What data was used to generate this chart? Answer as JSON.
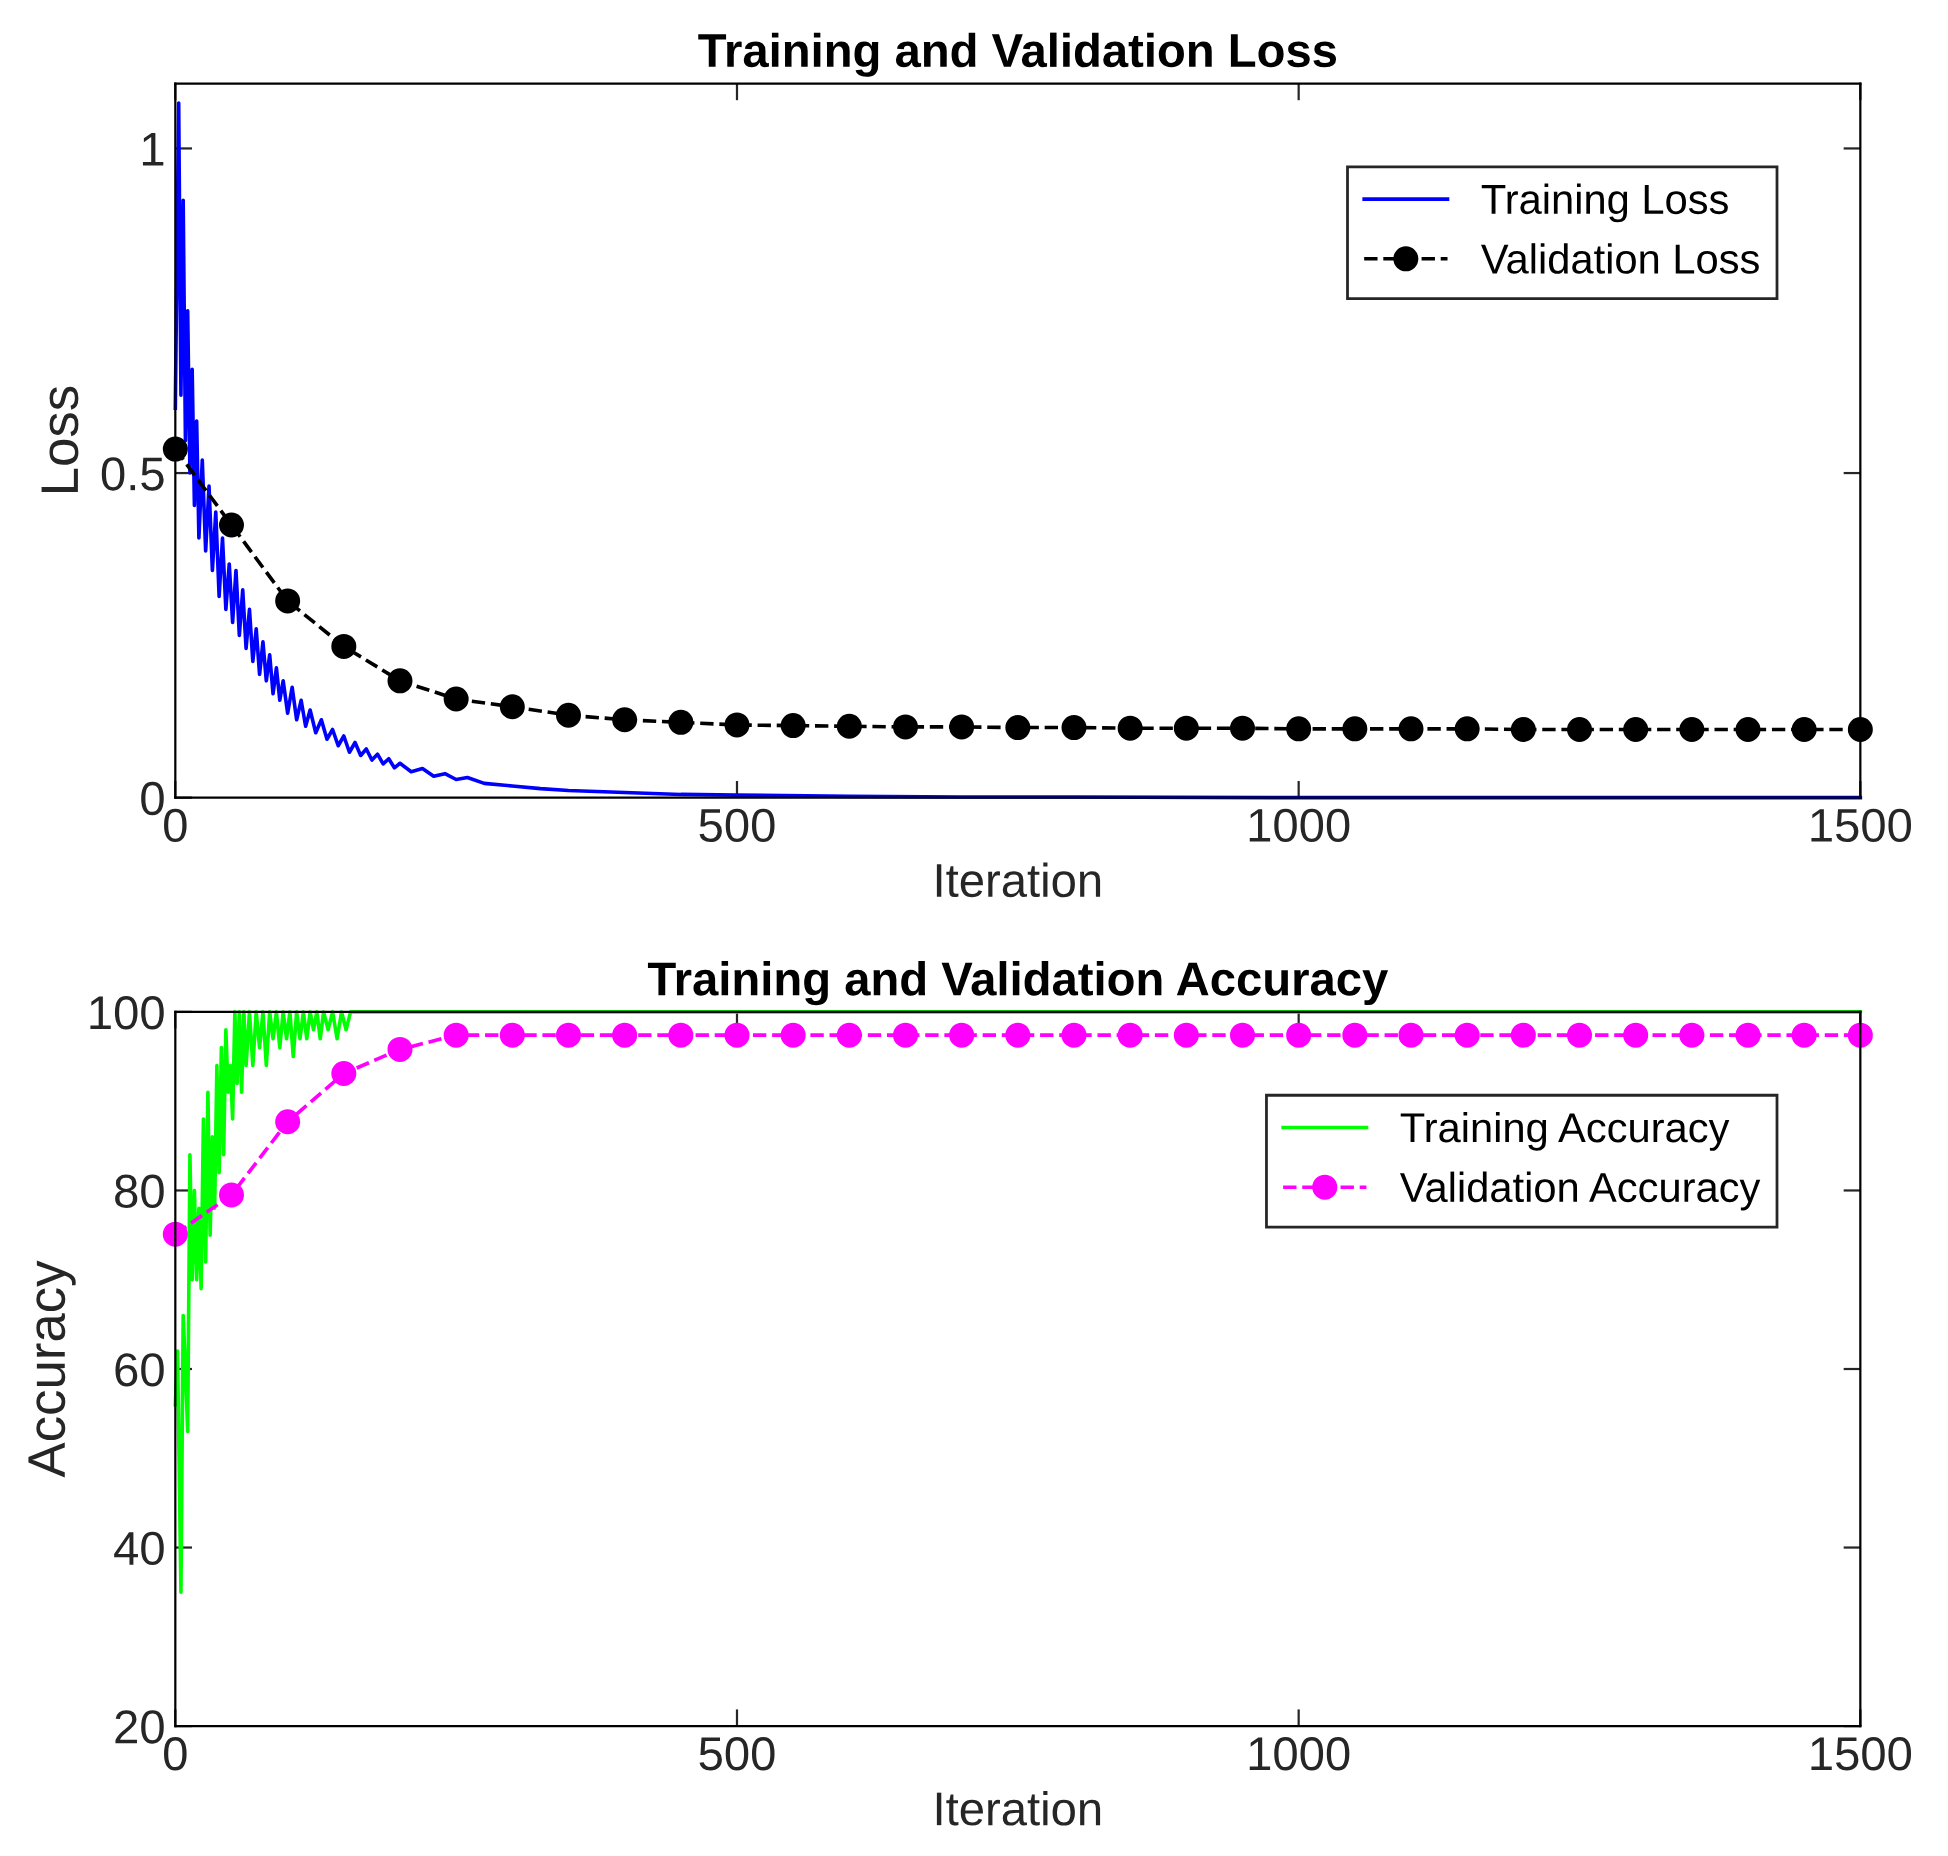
{
  "chart_data": [
    {
      "type": "line",
      "title": "Training and Validation Loss",
      "xlabel": "Iteration",
      "ylabel": "Loss",
      "xlim": [
        0,
        1500
      ],
      "xticks": [
        0,
        500,
        1000,
        1500
      ],
      "ylim": [
        0,
        1.1
      ],
      "yticks": [
        0,
        0.5,
        1
      ],
      "grid": false,
      "legend": "top right",
      "series": [
        {
          "name": "Training Loss",
          "color": "#0000ff",
          "line_style": "solid",
          "marker": "none",
          "x": [
            0,
            3,
            5,
            7,
            9,
            11,
            13,
            15,
            17,
            19,
            21,
            24,
            27,
            30,
            33,
            36,
            39,
            42,
            45,
            48,
            51,
            54,
            57,
            60,
            63,
            66,
            69,
            72,
            75,
            78,
            81,
            84,
            87,
            90,
            93,
            96,
            100,
            104,
            108,
            112,
            116,
            120,
            125,
            130,
            135,
            140,
            145,
            150,
            155,
            160,
            165,
            170,
            175,
            180,
            185,
            190,
            195,
            200,
            210,
            220,
            230,
            240,
            250,
            260,
            275,
            300,
            325,
            350,
            400,
            450,
            500,
            600,
            700,
            800,
            1000,
            1500
          ],
          "values": [
            0.6,
            1.07,
            0.62,
            0.92,
            0.55,
            0.75,
            0.5,
            0.66,
            0.45,
            0.58,
            0.4,
            0.52,
            0.38,
            0.48,
            0.35,
            0.44,
            0.31,
            0.4,
            0.29,
            0.36,
            0.27,
            0.35,
            0.25,
            0.32,
            0.23,
            0.29,
            0.21,
            0.26,
            0.19,
            0.24,
            0.18,
            0.22,
            0.16,
            0.2,
            0.15,
            0.18,
            0.13,
            0.17,
            0.12,
            0.15,
            0.11,
            0.135,
            0.1,
            0.12,
            0.09,
            0.105,
            0.08,
            0.095,
            0.07,
            0.085,
            0.065,
            0.075,
            0.058,
            0.067,
            0.052,
            0.06,
            0.046,
            0.053,
            0.04,
            0.045,
            0.033,
            0.037,
            0.028,
            0.031,
            0.022,
            0.018,
            0.014,
            0.011,
            0.008,
            0.005,
            0.004,
            0.002,
            0.001,
            0.001,
            0,
            0
          ]
        },
        {
          "name": "Validation Loss",
          "color": "#000000",
          "line_style": "dashed",
          "marker": "circle",
          "x": [
            0,
            50,
            100,
            150,
            200,
            250,
            300,
            350,
            400,
            450,
            500,
            550,
            600,
            650,
            700,
            750,
            800,
            850,
            900,
            950,
            1000,
            1050,
            1100,
            1150,
            1200,
            1250,
            1300,
            1350,
            1400,
            1450,
            1500
          ],
          "values": [
            0.537,
            0.42,
            0.303,
            0.233,
            0.18,
            0.152,
            0.14,
            0.127,
            0.12,
            0.116,
            0.112,
            0.111,
            0.11,
            0.109,
            0.109,
            0.108,
            0.108,
            0.107,
            0.107,
            0.107,
            0.106,
            0.106,
            0.106,
            0.106,
            0.105,
            0.105,
            0.105,
            0.105,
            0.105,
            0.105,
            0.105
          ]
        }
      ]
    },
    {
      "type": "line",
      "title": "Training and Validation Accuracy",
      "xlabel": "Iteration",
      "ylabel": "Accuracy",
      "xlim": [
        0,
        1500
      ],
      "xticks": [
        0,
        500,
        1000,
        1500
      ],
      "ylim": [
        20,
        100
      ],
      "yticks": [
        20,
        40,
        60,
        80,
        100
      ],
      "grid": false,
      "legend": "top right",
      "series": [
        {
          "name": "Training Accuracy",
          "color": "#00ff00",
          "line_style": "solid",
          "marker": "none",
          "x": [
            0,
            2,
            5,
            7,
            9,
            11,
            13,
            15,
            17,
            19,
            21,
            23,
            25,
            27,
            29,
            31,
            33,
            35,
            37,
            39,
            41,
            43,
            45,
            47,
            49,
            51,
            53,
            55,
            57,
            59,
            61,
            63,
            66,
            69,
            72,
            75,
            78,
            81,
            84,
            87,
            90,
            93,
            96,
            99,
            102,
            105,
            108,
            111,
            114,
            117,
            120,
            123,
            126,
            129,
            132,
            136,
            140,
            144,
            148,
            152,
            156,
            1500
          ],
          "values": [
            56,
            62,
            35,
            66,
            60,
            53,
            84,
            70,
            80,
            70,
            78,
            69,
            88,
            72,
            91,
            75,
            86,
            78,
            94,
            82,
            96,
            84,
            98,
            91,
            94,
            88,
            100,
            92,
            100,
            91,
            100,
            94,
            100,
            94,
            100,
            96,
            100,
            94,
            100,
            97,
            100,
            96,
            100,
            97,
            100,
            95,
            100,
            97,
            100,
            97,
            100,
            98,
            100,
            97,
            100,
            98,
            100,
            97,
            100,
            98,
            100,
            100
          ]
        },
        {
          "name": "Validation Accuracy",
          "color": "#ff00ff",
          "line_style": "dashed",
          "marker": "circle",
          "x": [
            0,
            50,
            100,
            150,
            200,
            250,
            300,
            350,
            400,
            450,
            500,
            550,
            600,
            650,
            700,
            750,
            800,
            850,
            900,
            950,
            1000,
            1050,
            1100,
            1150,
            1200,
            1250,
            1300,
            1350,
            1400,
            1450,
            1500
          ],
          "values": [
            75.1,
            79.5,
            87.7,
            93.1,
            95.8,
            97.4,
            97.4,
            97.4,
            97.4,
            97.4,
            97.4,
            97.4,
            97.4,
            97.4,
            97.4,
            97.4,
            97.4,
            97.4,
            97.4,
            97.4,
            97.4,
            97.4,
            97.4,
            97.4,
            97.4,
            97.4,
            97.4,
            97.4,
            97.4,
            97.4,
            97.4
          ]
        }
      ]
    }
  ]
}
